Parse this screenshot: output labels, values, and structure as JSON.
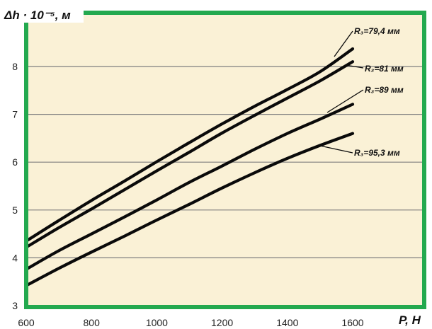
{
  "chart_data": {
    "type": "line",
    "title": "",
    "ylabel": "Δh · 10⁻⁵, м",
    "xlabel": "P, Н",
    "xlim": [
      600,
      1600
    ],
    "ylim": [
      3,
      8.8
    ],
    "xticks": [
      600,
      800,
      1000,
      1200,
      1400,
      1600
    ],
    "yticks": [
      3,
      4,
      5,
      6,
      7,
      8
    ],
    "grid": "horizontal",
    "legend": "inline labels near line ends",
    "series": [
      {
        "name": "R₃=79,4 мм",
        "x": [
          600,
          700,
          800,
          900,
          1000,
          1100,
          1200,
          1300,
          1400,
          1500,
          1600
        ],
        "y": [
          4.35,
          4.78,
          5.2,
          5.6,
          6.01,
          6.41,
          6.8,
          7.17,
          7.52,
          7.89,
          8.37
        ]
      },
      {
        "name": "R₃=81 мм",
        "x": [
          600,
          700,
          800,
          900,
          1000,
          1100,
          1200,
          1300,
          1400,
          1500,
          1600
        ],
        "y": [
          4.22,
          4.63,
          5.02,
          5.42,
          5.82,
          6.21,
          6.61,
          6.98,
          7.34,
          7.7,
          8.1
        ]
      },
      {
        "name": "R₃=89 мм",
        "x": [
          600,
          700,
          800,
          900,
          1000,
          1100,
          1200,
          1300,
          1400,
          1500,
          1600
        ],
        "y": [
          3.76,
          4.15,
          4.5,
          4.85,
          5.21,
          5.58,
          5.92,
          6.27,
          6.6,
          6.9,
          7.21
        ]
      },
      {
        "name": "R₃=95,3 мм",
        "x": [
          600,
          700,
          800,
          900,
          1000,
          1100,
          1200,
          1300,
          1400,
          1500,
          1600
        ],
        "y": [
          3.42,
          3.78,
          4.12,
          4.45,
          4.79,
          5.12,
          5.46,
          5.78,
          6.08,
          6.35,
          6.6
        ]
      }
    ]
  },
  "colors": {
    "frame": "#23a94f",
    "background": "#faf1d6",
    "grid": "#7f7f7f",
    "line": "#0a0a0a"
  }
}
